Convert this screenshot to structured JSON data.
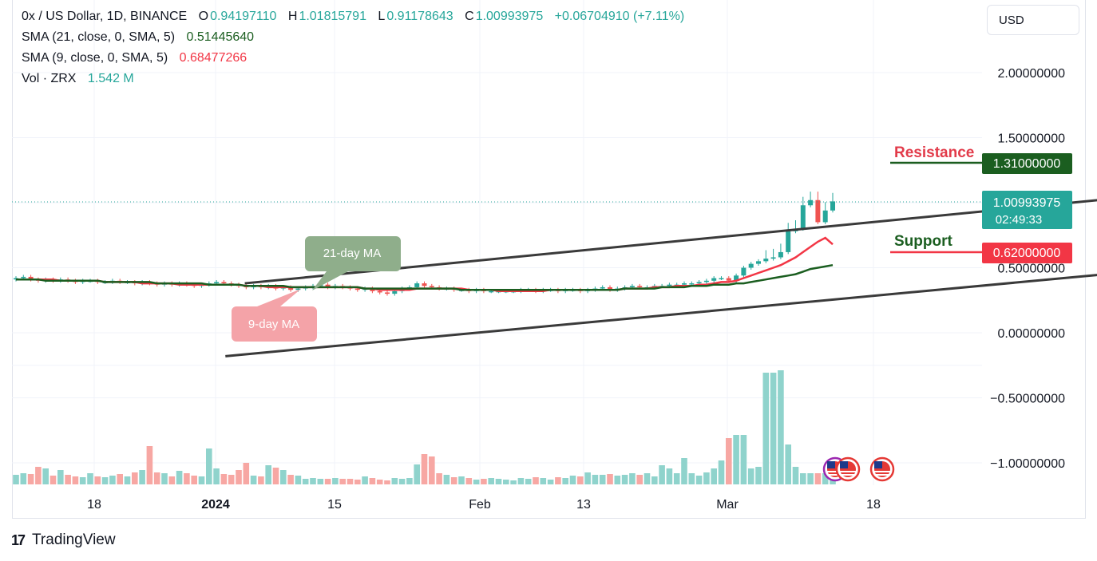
{
  "header": {
    "symbol": "0x / US Dollar, 1D, BINANCE",
    "o_label": "O",
    "o_value": "0.94197110",
    "h_label": "H",
    "h_value": "1.01815791",
    "l_label": "L",
    "l_value": "0.91178643",
    "c_label": "C",
    "c_value": "1.00993975",
    "change": "+0.06704910 (+7.11%)"
  },
  "indicators": [
    {
      "label": "SMA (21, close, 0, SMA, 5)",
      "value": "0.51445640",
      "color": "#1b5e20"
    },
    {
      "label": "SMA (9, close, 0, SMA, 5)",
      "value": "0.68477266",
      "color": "#f23645"
    }
  ],
  "volume": {
    "label": "Vol · ZRX",
    "value": "1.542 M"
  },
  "currency": "USD",
  "brand": "TradingView",
  "colors": {
    "up": "#26a69a",
    "down": "#ef5350",
    "sma21": "#1b5e20",
    "sma9": "#f23645",
    "resistance": "#1b5e20",
    "support": "#f23645"
  },
  "chart_data": {
    "type": "candlestick",
    "y_axis": {
      "range": [
        -1.15,
        2.2
      ],
      "ticks": [
        "2.00000000",
        "1.50000000",
        "0.50000000",
        "0.00000000",
        "−0.50000000",
        "−1.00000000"
      ],
      "tick_values": [
        2.0,
        1.5,
        0.5,
        0.0,
        -0.5,
        -1.0
      ]
    },
    "x_axis": {
      "ticks": [
        "18",
        "2024",
        "15",
        "Feb",
        "13",
        "Mar",
        "18"
      ]
    },
    "price_labels": {
      "resistance_value": "1.31000000",
      "current_value": "1.00993975",
      "countdown": "02:49:33",
      "support_value": "0.62000000"
    },
    "annotations": {
      "resistance": "Resistance",
      "support": "Support",
      "ma21": "21-day MA",
      "ma9": "9-day MA"
    },
    "levels": {
      "resistance": 1.31,
      "support": 0.62,
      "current": 1.00993975
    },
    "channel": {
      "upper": [
        [
          0.24,
          0.38
        ],
        [
          1.12,
          1.02
        ]
      ],
      "lower": [
        [
          0.22,
          -0.18
        ],
        [
          1.17,
          0.48
        ]
      ]
    },
    "closes": [
      0.42,
      0.43,
      0.41,
      0.4,
      0.41,
      0.4,
      0.41,
      0.4,
      0.39,
      0.4,
      0.4,
      0.39,
      0.39,
      0.4,
      0.39,
      0.39,
      0.38,
      0.39,
      0.38,
      0.37,
      0.38,
      0.37,
      0.38,
      0.37,
      0.36,
      0.37,
      0.38,
      0.39,
      0.38,
      0.37,
      0.36,
      0.35,
      0.36,
      0.35,
      0.36,
      0.34,
      0.35,
      0.33,
      0.34,
      0.35,
      0.36,
      0.37,
      0.35,
      0.36,
      0.35,
      0.34,
      0.33,
      0.34,
      0.32,
      0.31,
      0.3,
      0.32,
      0.34,
      0.35,
      0.38,
      0.36,
      0.35,
      0.34,
      0.34,
      0.33,
      0.33,
      0.32,
      0.33,
      0.32,
      0.32,
      0.32,
      0.32,
      0.32,
      0.33,
      0.33,
      0.32,
      0.33,
      0.33,
      0.32,
      0.33,
      0.33,
      0.32,
      0.33,
      0.34,
      0.35,
      0.33,
      0.34,
      0.35,
      0.36,
      0.35,
      0.35,
      0.36,
      0.36,
      0.37,
      0.37,
      0.38,
      0.38,
      0.39,
      0.4,
      0.42,
      0.42,
      0.4,
      0.44,
      0.5,
      0.53,
      0.55,
      0.57,
      0.58,
      0.62,
      0.78,
      0.8,
      0.98,
      1.02,
      0.85,
      0.94,
      1.01
    ],
    "sma21": [
      0.41,
      0.41,
      0.41,
      0.41,
      0.4,
      0.4,
      0.4,
      0.4,
      0.4,
      0.4,
      0.4,
      0.4,
      0.39,
      0.39,
      0.39,
      0.39,
      0.39,
      0.39,
      0.39,
      0.38,
      0.38,
      0.38,
      0.38,
      0.38,
      0.38,
      0.38,
      0.37,
      0.37,
      0.37,
      0.37,
      0.37,
      0.36,
      0.36,
      0.36,
      0.36,
      0.36,
      0.36,
      0.35,
      0.35,
      0.35,
      0.35,
      0.35,
      0.35,
      0.35,
      0.35,
      0.35,
      0.35,
      0.34,
      0.34,
      0.34,
      0.34,
      0.34,
      0.34,
      0.34,
      0.34,
      0.34,
      0.34,
      0.34,
      0.34,
      0.34,
      0.33,
      0.33,
      0.33,
      0.33,
      0.33,
      0.33,
      0.33,
      0.33,
      0.33,
      0.33,
      0.33,
      0.33,
      0.33,
      0.33,
      0.33,
      0.33,
      0.33,
      0.33,
      0.33,
      0.33,
      0.33,
      0.33,
      0.34,
      0.34,
      0.34,
      0.34,
      0.34,
      0.35,
      0.35,
      0.35,
      0.35,
      0.36,
      0.36,
      0.36,
      0.37,
      0.37,
      0.37,
      0.38,
      0.38,
      0.39,
      0.4,
      0.41,
      0.42,
      0.43,
      0.44,
      0.45,
      0.47,
      0.49,
      0.5,
      0.51,
      0.52
    ],
    "sma9": [
      0.41,
      0.41,
      0.41,
      0.41,
      0.41,
      0.41,
      0.4,
      0.4,
      0.4,
      0.4,
      0.4,
      0.4,
      0.39,
      0.39,
      0.39,
      0.39,
      0.39,
      0.38,
      0.38,
      0.38,
      0.38,
      0.38,
      0.37,
      0.37,
      0.37,
      0.37,
      0.37,
      0.37,
      0.37,
      0.37,
      0.37,
      0.36,
      0.36,
      0.36,
      0.35,
      0.35,
      0.35,
      0.35,
      0.35,
      0.35,
      0.35,
      0.35,
      0.35,
      0.35,
      0.35,
      0.35,
      0.35,
      0.34,
      0.34,
      0.33,
      0.33,
      0.33,
      0.33,
      0.33,
      0.34,
      0.34,
      0.34,
      0.34,
      0.34,
      0.34,
      0.34,
      0.33,
      0.33,
      0.33,
      0.33,
      0.32,
      0.32,
      0.32,
      0.32,
      0.32,
      0.32,
      0.32,
      0.33,
      0.33,
      0.33,
      0.33,
      0.33,
      0.33,
      0.33,
      0.33,
      0.33,
      0.33,
      0.34,
      0.34,
      0.34,
      0.34,
      0.35,
      0.35,
      0.35,
      0.36,
      0.36,
      0.36,
      0.37,
      0.37,
      0.38,
      0.39,
      0.39,
      0.4,
      0.42,
      0.44,
      0.46,
      0.48,
      0.5,
      0.52,
      0.55,
      0.58,
      0.62,
      0.66,
      0.7,
      0.73,
      0.68
    ],
    "volume_heights": [
      12,
      14,
      13,
      22,
      20,
      11,
      18,
      12,
      10,
      9,
      14,
      10,
      9,
      11,
      13,
      10,
      15,
      18,
      48,
      15,
      14,
      10,
      17,
      14,
      11,
      10,
      45,
      20,
      13,
      12,
      18,
      27,
      11,
      10,
      24,
      21,
      18,
      12,
      11,
      7,
      8,
      7,
      7,
      8,
      7,
      7,
      6,
      10,
      8,
      6,
      5,
      8,
      7,
      8,
      25,
      38,
      35,
      14,
      12,
      9,
      10,
      8,
      6,
      7,
      8,
      7,
      6,
      5,
      8,
      7,
      9,
      8,
      6,
      9,
      8,
      11,
      10,
      15,
      12,
      12,
      13,
      11,
      12,
      14,
      12,
      14,
      10,
      24,
      20,
      14,
      33,
      14,
      11,
      15,
      20,
      30,
      58,
      62,
      62,
      20,
      22,
      140,
      140,
      143,
      50,
      22,
      14,
      14,
      14,
      14,
      14
    ]
  }
}
